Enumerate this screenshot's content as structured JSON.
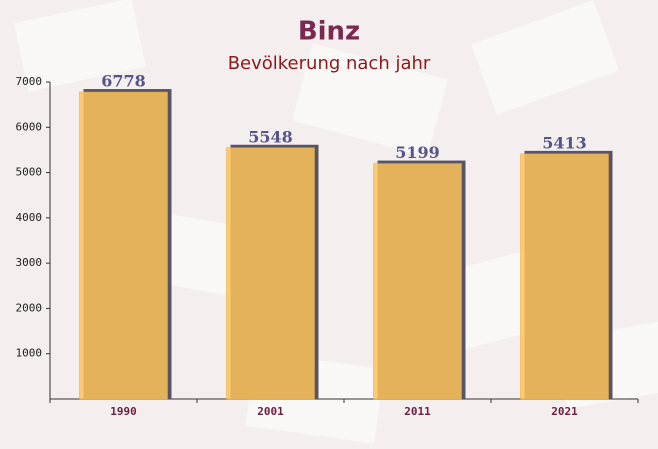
{
  "chart_data": {
    "type": "bar",
    "title": "Binz",
    "subtitle": "Bevölkerung nach jahr",
    "categories": [
      "1990",
      "2001",
      "2011",
      "2021"
    ],
    "values": [
      6778,
      5548,
      5199,
      5413
    ],
    "color": "#ffc35a",
    "ylim": [
      0,
      7000
    ],
    "yticks": [
      1000,
      2000,
      3000,
      4000,
      5000,
      6000,
      7000
    ]
  }
}
